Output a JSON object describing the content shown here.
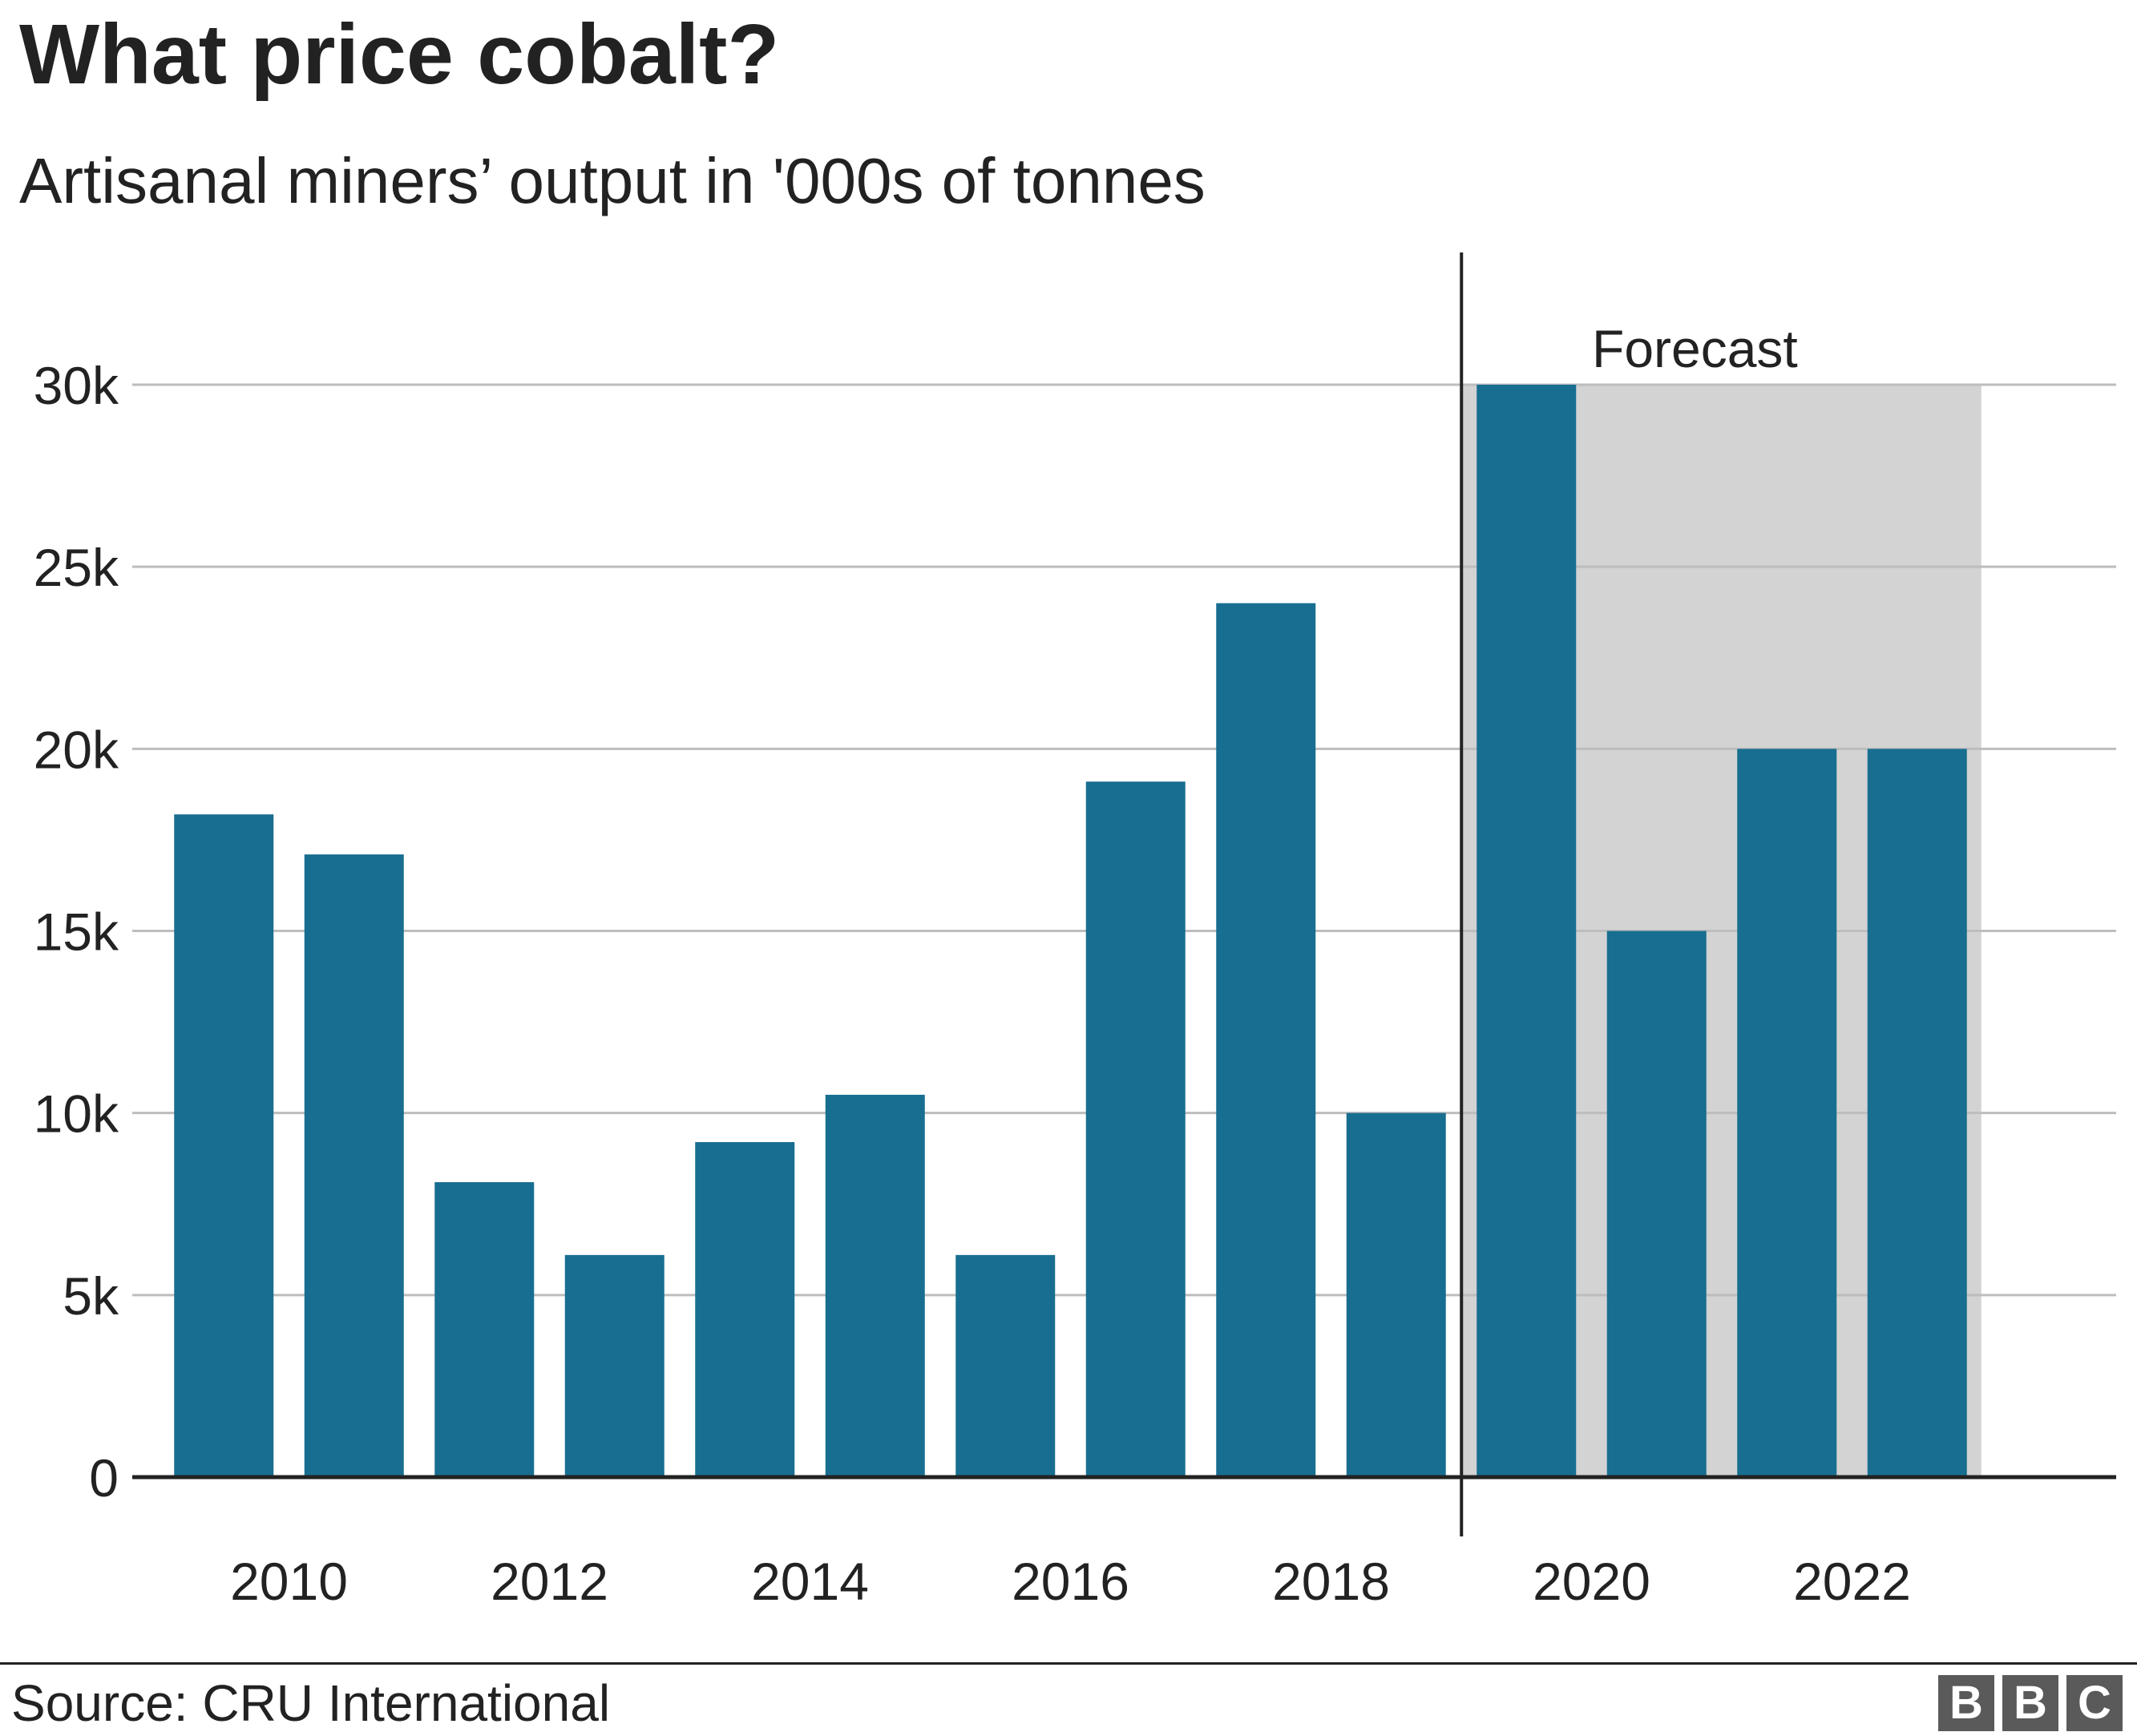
{
  "header": {
    "title": "What price cobalt?",
    "subtitle": "Artisanal miners’ output in '000s of tonnes"
  },
  "footer": {
    "source": "Source: CRU International",
    "logo_letters": [
      "B",
      "B",
      "C"
    ]
  },
  "colors": {
    "bar": "#186e90",
    "forecast_shade": "#d3d3d3",
    "gridline": "#bdbdbd",
    "axis": "#222222",
    "text": "#222222",
    "logo_bg": "#5a5a5a"
  },
  "chart_data": {
    "type": "bar",
    "title": "What price cobalt?",
    "subtitle": "Artisanal miners’ output in '000s of tonnes",
    "categories": [
      2010,
      2011,
      2012,
      2013,
      2014,
      2015,
      2016,
      2017,
      2018,
      2019,
      2020,
      2021,
      2022,
      2023
    ],
    "x_tick_labels": [
      "2010",
      "2012",
      "2014",
      "2016",
      "2018",
      "2020",
      "2022"
    ],
    "values": [
      18200,
      17100,
      8100,
      6100,
      9200,
      10500,
      6100,
      19100,
      24000,
      10000,
      30000,
      15000,
      20000,
      20000
    ],
    "ylim": [
      0,
      30000
    ],
    "y_ticks": [
      0,
      5000,
      10000,
      15000,
      20000,
      25000,
      30000
    ],
    "y_tick_labels": [
      "0",
      "5k",
      "10k",
      "15k",
      "20k",
      "25k",
      "30k"
    ],
    "grid": true,
    "forecast": {
      "label": "Forecast",
      "from_category": 2020,
      "to_category": 2023
    }
  }
}
